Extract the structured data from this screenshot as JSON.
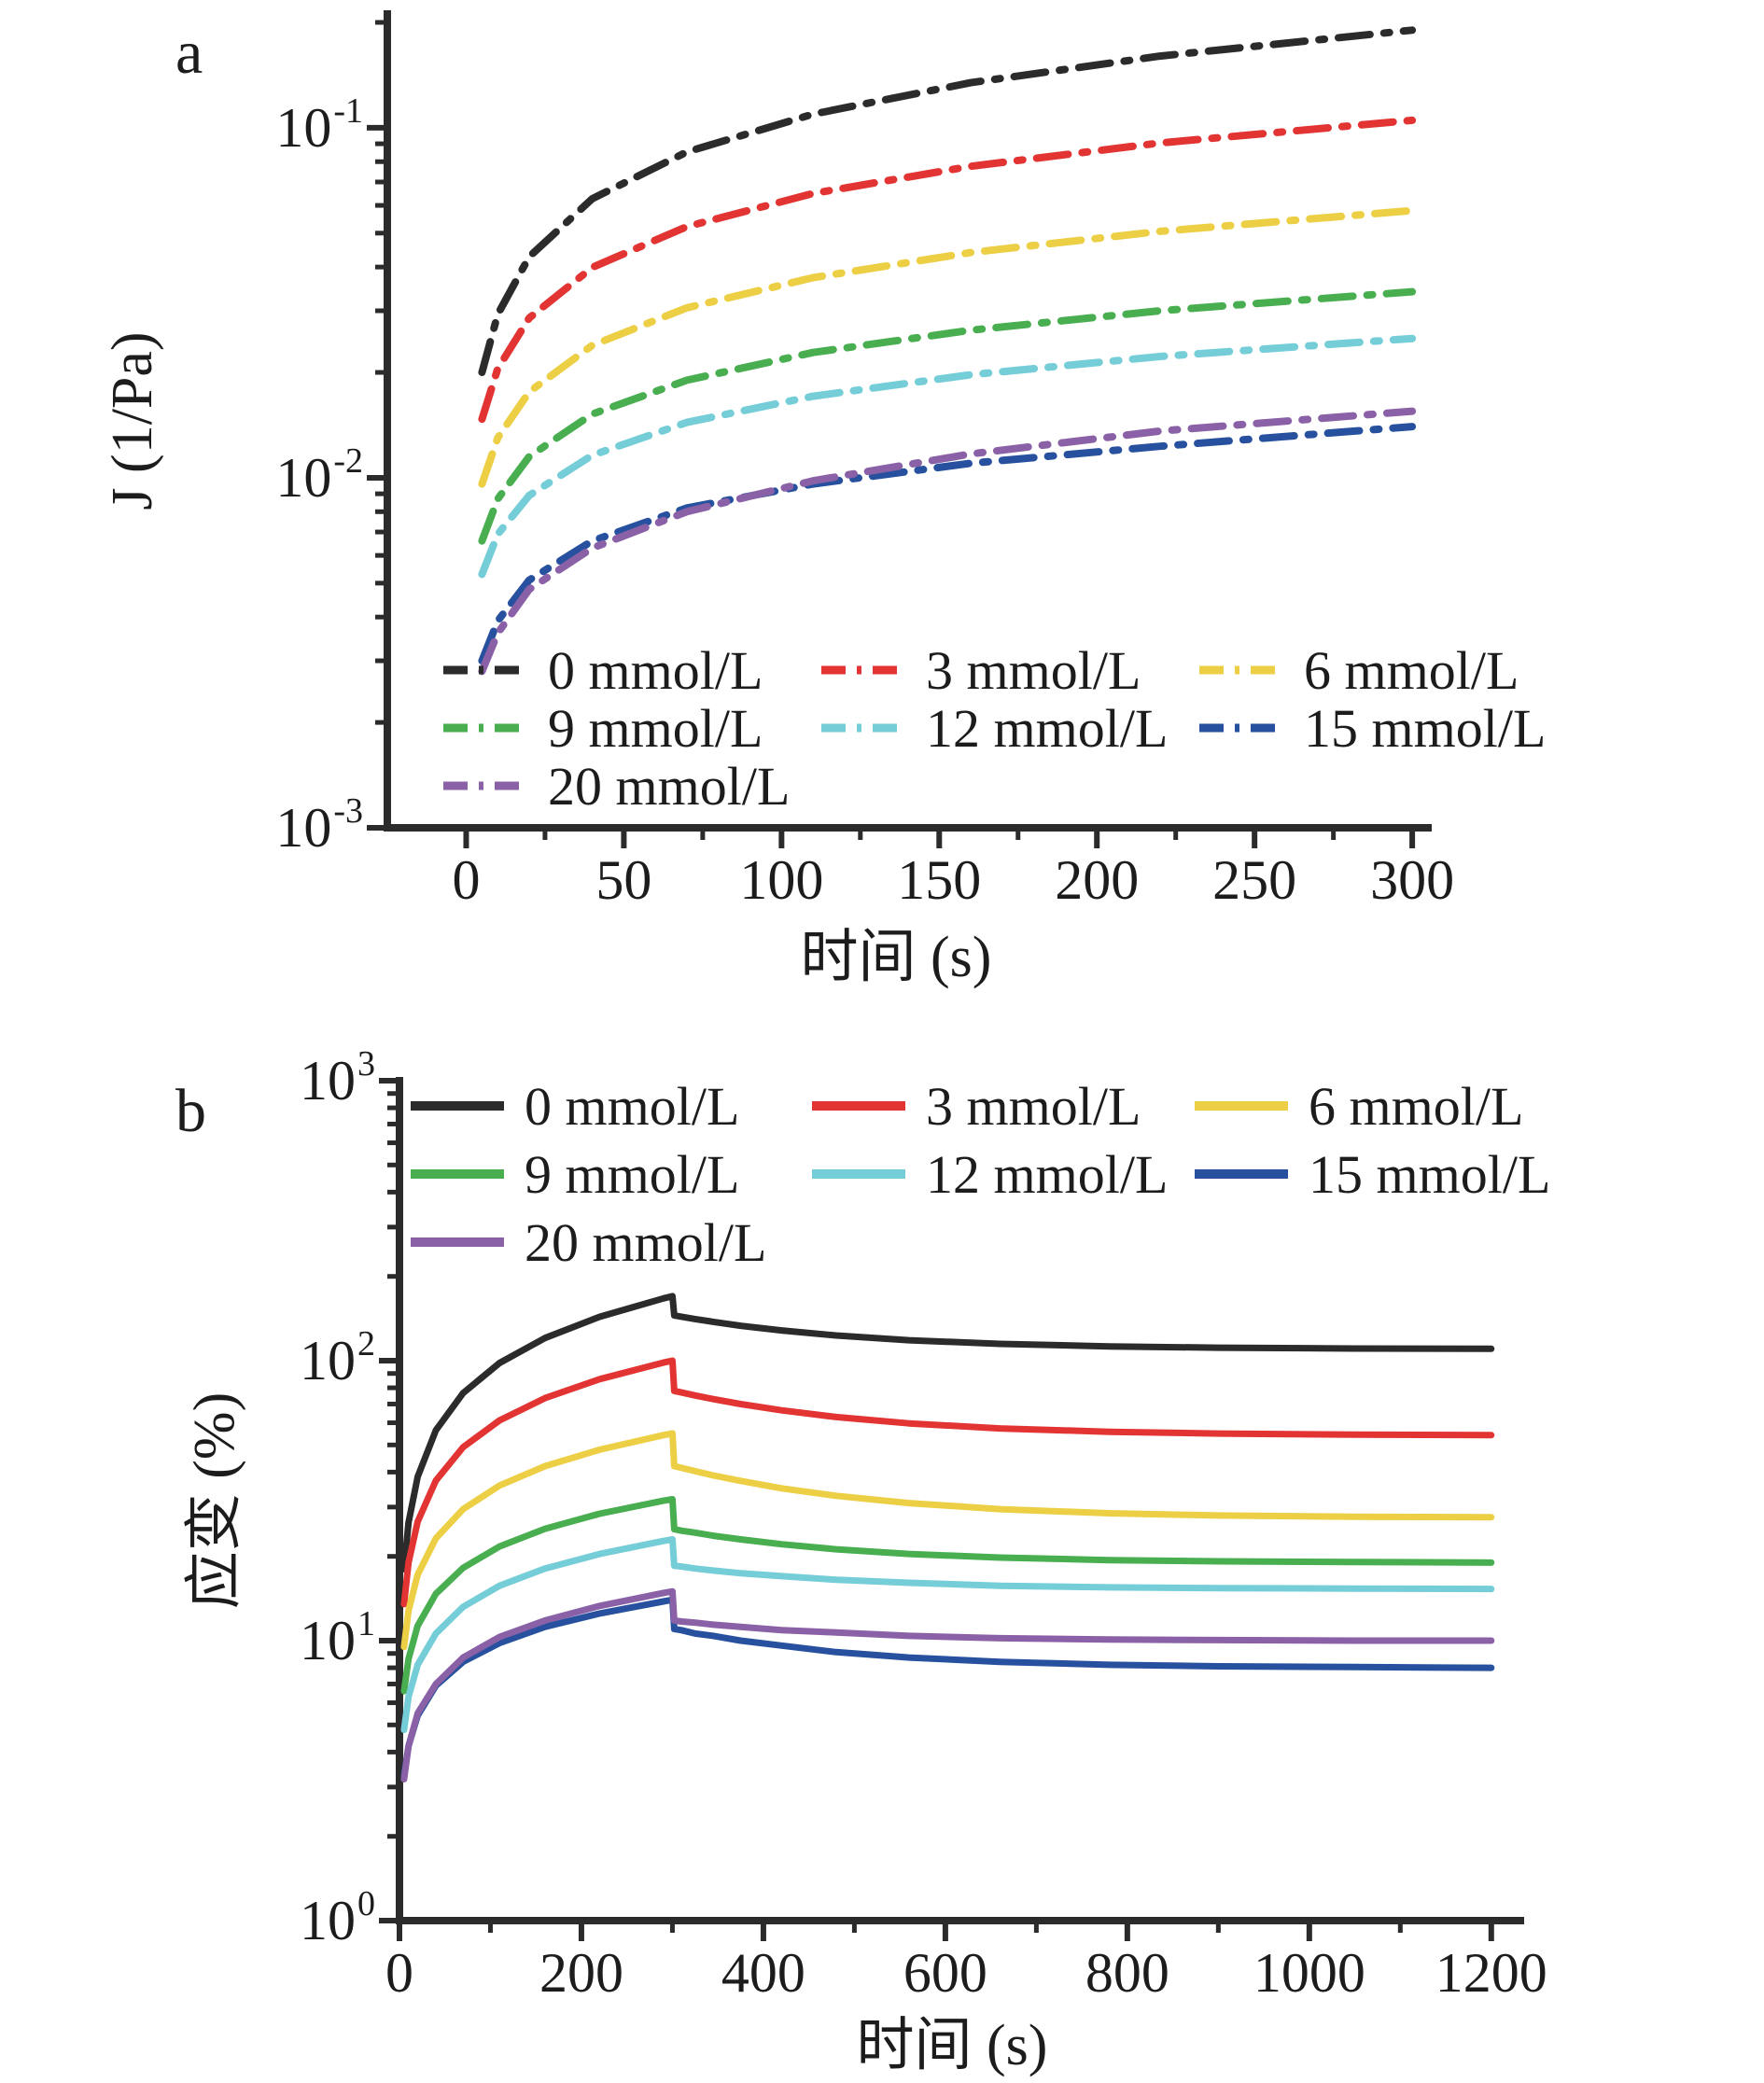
{
  "figure": {
    "background": "#ffffff",
    "axis_color": "#2b2b2b",
    "text_color": "#1c1c1c"
  },
  "chart_data": [
    {
      "id": "a",
      "panel_label": "a",
      "type": "line",
      "line_style": "dash-dot",
      "title": "",
      "xlabel": "时间 (s)",
      "ylabel": "J (1/Pa)",
      "x_ticks": [
        0,
        50,
        100,
        150,
        200,
        250,
        300
      ],
      "x_minor_step": 25,
      "y_scale": "log",
      "y_tick_exps": [
        "-1",
        "-2",
        "-3"
      ],
      "x_range": [
        -25,
        305
      ],
      "y_log_range": [
        -3,
        -0.675
      ],
      "grid": false,
      "legend_position": "inside-lower-left",
      "x": [
        5,
        10,
        20,
        40,
        70,
        110,
        160,
        220,
        300
      ],
      "series": [
        {
          "name": "0 mmol/L",
          "color": "#2b2b2b",
          "values": [
            0.02,
            0.0293,
            0.0428,
            0.0627,
            0.0853,
            0.1094,
            0.1345,
            0.1602,
            0.19
          ]
        },
        {
          "name": "3 mmol/L",
          "color": "#e23433",
          "values": [
            0.0147,
            0.0205,
            0.0286,
            0.0399,
            0.0522,
            0.0649,
            0.0776,
            0.0905,
            0.105
          ]
        },
        {
          "name": "6 mmol/L",
          "color": "#eccf44",
          "values": [
            0.0096,
            0.013,
            0.0176,
            0.0239,
            0.0306,
            0.0373,
            0.044,
            0.0506,
            0.058
          ]
        },
        {
          "name": "9 mmol/L",
          "color": "#48ae50",
          "values": [
            0.0066,
            0.0087,
            0.0115,
            0.0152,
            0.019,
            0.0228,
            0.0264,
            0.03,
            0.034
          ]
        },
        {
          "name": "12 mmol/L",
          "color": "#74cdd7",
          "values": [
            0.0053,
            0.0069,
            0.0089,
            0.0116,
            0.0144,
            0.0171,
            0.0197,
            0.0222,
            0.025
          ]
        },
        {
          "name": "15 mmol/L",
          "color": "#27519e",
          "values": [
            0.003,
            0.0039,
            0.0051,
            0.0066,
            0.0082,
            0.0096,
            0.011,
            0.0123,
            0.014
          ]
        },
        {
          "name": "20 mmol/L",
          "color": "#8a60a6",
          "values": [
            0.0028,
            0.0036,
            0.0048,
            0.0063,
            0.008,
            0.0098,
            0.0117,
            0.0136,
            0.0155
          ]
        }
      ]
    },
    {
      "id": "b",
      "panel_label": "b",
      "type": "line",
      "line_style": "solid",
      "title": "",
      "xlabel": "时间 (s)",
      "ylabel": "应变 (%)",
      "x_ticks": [
        0,
        200,
        400,
        600,
        800,
        1000,
        1200
      ],
      "x_minor_step": 100,
      "y_scale": "log",
      "y_tick_exps": [
        "3",
        "2",
        "1",
        "0"
      ],
      "x_range": [
        0,
        1232
      ],
      "y_log_range": [
        0,
        3
      ],
      "grid": false,
      "legend_position": "inside-upper-left",
      "x": [
        5,
        10,
        20,
        40,
        70,
        110,
        160,
        220,
        290,
        300,
        302,
        310,
        325,
        345,
        375,
        420,
        480,
        560,
        660,
        780,
        900,
        1050,
        1200
      ],
      "series": [
        {
          "name": "0 mmol/L",
          "color": "#2b2b2b",
          "values": [
            18.0,
            26.4,
            38.5,
            56.4,
            76.6,
            98.1,
            120.5,
            143.4,
            166.9,
            170,
            145,
            143.5,
            140.8,
            137.6,
            133.3,
            128.2,
            123.0,
            118.3,
            114.8,
            112.5,
            111.3,
            110.5,
            110.2
          ]
        },
        {
          "name": "3 mmol/L",
          "color": "#e23433",
          "values": [
            13.5,
            19.0,
            26.6,
            37.3,
            49.1,
            61.2,
            73.5,
            85.9,
            98.4,
            100,
            78,
            77.0,
            75.1,
            72.9,
            70.0,
            66.5,
            62.9,
            59.7,
            57.3,
            55.7,
            54.9,
            54.4,
            54.2
          ]
        },
        {
          "name": "6 mmol/L",
          "color": "#eccf44",
          "values": [
            9.5,
            12.8,
            17.2,
            23.2,
            29.5,
            35.8,
            42.0,
            48.1,
            54.2,
            55,
            42,
            41.4,
            40.3,
            38.9,
            37.2,
            35.0,
            32.9,
            31.0,
            29.5,
            28.5,
            28.0,
            27.7,
            27.6
          ]
        },
        {
          "name": "9 mmol/L",
          "color": "#48ae50",
          "values": [
            6.6,
            8.6,
            11.3,
            14.7,
            18.2,
            21.7,
            25.1,
            28.4,
            31.6,
            32,
            25,
            24.7,
            24.3,
            23.7,
            23.0,
            22.1,
            21.2,
            20.4,
            19.8,
            19.4,
            19.2,
            19.1,
            19.0
          ]
        },
        {
          "name": "12 mmol/L",
          "color": "#74cdd7",
          "values": [
            4.8,
            6.3,
            8.2,
            10.6,
            13.2,
            15.7,
            18.1,
            20.4,
            22.7,
            23,
            18.5,
            18.4,
            18.1,
            17.8,
            17.4,
            17.0,
            16.5,
            16.1,
            15.7,
            15.5,
            15.4,
            15.35,
            15.3
          ]
        },
        {
          "name": "15 mmol/L",
          "color": "#27519e",
          "values": [
            3.3,
            4.2,
            5.4,
            6.9,
            8.4,
            9.8,
            11.2,
            12.5,
            13.8,
            14,
            11.0,
            10.9,
            10.6,
            10.4,
            10.0,
            9.6,
            9.1,
            8.7,
            8.4,
            8.2,
            8.1,
            8.05,
            8.0
          ]
        },
        {
          "name": "20 mmol/L",
          "color": "#8a60a6",
          "values": [
            3.2,
            4.2,
            5.5,
            7.0,
            8.7,
            10.3,
            11.8,
            13.3,
            14.8,
            15,
            11.8,
            11.7,
            11.6,
            11.4,
            11.2,
            10.9,
            10.7,
            10.4,
            10.2,
            10.1,
            10.05,
            10.0,
            10.0
          ]
        }
      ]
    }
  ]
}
